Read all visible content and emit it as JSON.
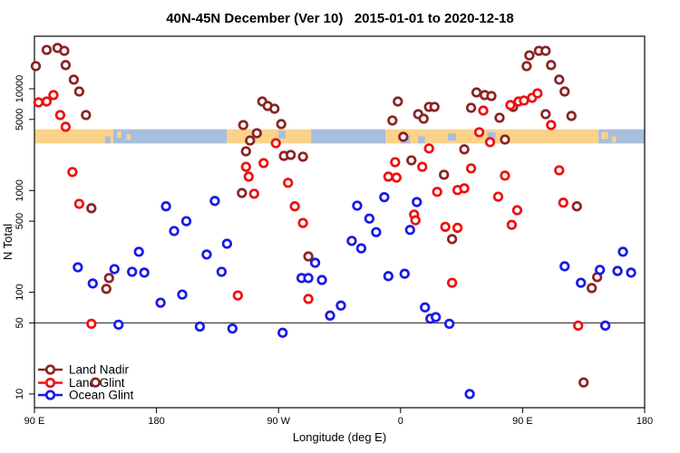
{
  "chart_data": {
    "type": "scatter",
    "title": "40N-45N December (Ver 10)   2015-01-01 to 2020-12-18",
    "xlabel": "Longitude (deg E)",
    "ylabel": "N Total",
    "x_axis": {
      "range": [
        90,
        540
      ],
      "ticks": [
        90,
        180,
        270,
        360,
        450,
        540
      ],
      "tick_labels": [
        "90 E",
        "180",
        "90 W",
        "0",
        "90 E",
        "180"
      ]
    },
    "y_axis": {
      "scale": "log",
      "range": [
        7,
        33000
      ],
      "ticks": [
        10,
        50,
        100,
        500,
        1000,
        5000,
        10000
      ],
      "tick_labels": [
        "10",
        "50",
        "100",
        "500",
        "1000",
        "5000",
        "10000"
      ]
    },
    "reference_line_y": 50,
    "legend_position": "bottom-left",
    "grid": false,
    "map_strip": {
      "description": "world land/ocean strip for 40N-45N band",
      "value_range": [
        2900,
        4000
      ],
      "land_color": "#fbd28a",
      "ocean_color": "#a7bedc",
      "segments": [
        {
          "c": "land",
          "a": 90,
          "b": 148
        },
        {
          "c": "ocean",
          "a": 148,
          "b": 232
        },
        {
          "c": "land",
          "a": 232,
          "b": 294
        },
        {
          "c": "ocean",
          "a": 294,
          "b": 349
        },
        {
          "c": "land",
          "a": 349,
          "b": 506
        },
        {
          "c": "ocean",
          "a": 506,
          "b": 540
        }
      ],
      "patches": [
        {
          "c": "ocean",
          "a": 142,
          "b": 146,
          "t": 0.5,
          "h": 0.5
        },
        {
          "c": "land",
          "a": 151,
          "b": 154,
          "t": 0.15,
          "h": 0.45
        },
        {
          "c": "land",
          "a": 158,
          "b": 161,
          "t": 0.35,
          "h": 0.4
        },
        {
          "c": "ocean",
          "a": 270,
          "b": 275,
          "t": 0.1,
          "h": 0.55
        },
        {
          "c": "ocean",
          "a": 360,
          "b": 367,
          "t": 0.45,
          "h": 0.55
        },
        {
          "c": "ocean",
          "a": 373,
          "b": 378,
          "t": 0.5,
          "h": 0.5
        },
        {
          "c": "ocean",
          "a": 395,
          "b": 401,
          "t": 0.3,
          "h": 0.5
        },
        {
          "c": "ocean",
          "a": 424,
          "b": 430,
          "t": 0.2,
          "h": 0.6
        },
        {
          "c": "land",
          "a": 508,
          "b": 513,
          "t": 0.2,
          "h": 0.5
        },
        {
          "c": "land",
          "a": 516,
          "b": 519,
          "t": 0.5,
          "h": 0.4
        }
      ]
    },
    "series": [
      {
        "name": "Land Nadir",
        "color": "#8b2424",
        "points": [
          [
            99,
            24100
          ],
          [
            107,
            25200
          ],
          [
            112,
            23600
          ],
          [
            91,
            16700
          ],
          [
            113,
            17100
          ],
          [
            119,
            12300
          ],
          [
            123,
            9400
          ],
          [
            128,
            5520
          ],
          [
            132,
            670
          ],
          [
            145,
            138
          ],
          [
            143,
            108
          ],
          [
            135,
            13
          ],
          [
            244,
            4400
          ],
          [
            258,
            7500
          ],
          [
            262,
            6780
          ],
          [
            267,
            6370
          ],
          [
            272,
            4500
          ],
          [
            249,
            3100
          ],
          [
            254,
            3660
          ],
          [
            246,
            2430
          ],
          [
            243,
            945
          ],
          [
            274,
            2190
          ],
          [
            279,
            2240
          ],
          [
            288,
            2150
          ],
          [
            292,
            225
          ],
          [
            358,
            7500
          ],
          [
            381,
            6640
          ],
          [
            385,
            6640
          ],
          [
            373,
            5630
          ],
          [
            377,
            5080
          ],
          [
            354,
            4880
          ],
          [
            362,
            3370
          ],
          [
            368,
            1980
          ],
          [
            412,
            6500
          ],
          [
            416,
            9200
          ],
          [
            422,
            8670
          ],
          [
            427,
            8490
          ],
          [
            433,
            5190
          ],
          [
            437,
            3170
          ],
          [
            443,
            6640
          ],
          [
            407,
            2540
          ],
          [
            392,
            1430
          ],
          [
            398,
            333
          ],
          [
            455,
            21300
          ],
          [
            462,
            23600
          ],
          [
            467,
            23600
          ],
          [
            453,
            16700
          ],
          [
            471,
            17100
          ],
          [
            477,
            12300
          ],
          [
            481,
            9400
          ],
          [
            467,
            5630
          ],
          [
            486,
            5410
          ],
          [
            490,
            700
          ],
          [
            505,
            141
          ],
          [
            501,
            110
          ],
          [
            495,
            13
          ]
        ]
      },
      {
        "name": "Land Glint",
        "color": "#ee1111",
        "points": [
          [
            93,
            7350
          ],
          [
            99,
            7500
          ],
          [
            104,
            8670
          ],
          [
            109,
            5520
          ],
          [
            113,
            4230
          ],
          [
            118,
            1520
          ],
          [
            123,
            740
          ],
          [
            132,
            49
          ],
          [
            246,
            1710
          ],
          [
            259,
            1860
          ],
          [
            248,
            1370
          ],
          [
            252,
            930
          ],
          [
            268,
            2920
          ],
          [
            277,
            1190
          ],
          [
            282,
            700
          ],
          [
            288,
            480
          ],
          [
            240,
            93
          ],
          [
            292,
            86
          ],
          [
            441,
            6920
          ],
          [
            447,
            7500
          ],
          [
            451,
            7660
          ],
          [
            457,
            8150
          ],
          [
            461,
            9020
          ],
          [
            421,
            6110
          ],
          [
            471,
            4400
          ],
          [
            418,
            3740
          ],
          [
            426,
            2990
          ],
          [
            381,
            2590
          ],
          [
            356,
            1900
          ],
          [
            376,
            1710
          ],
          [
            351,
            1370
          ],
          [
            357,
            1340
          ],
          [
            412,
            1650
          ],
          [
            437,
            1400
          ],
          [
            387,
            970
          ],
          [
            402,
            1010
          ],
          [
            407,
            1050
          ],
          [
            432,
            870
          ],
          [
            477,
            1580
          ],
          [
            480,
            760
          ],
          [
            446,
            640
          ],
          [
            370,
            580
          ],
          [
            371,
            510
          ],
          [
            393,
            440
          ],
          [
            402,
            430
          ],
          [
            442,
            460
          ],
          [
            398,
            124
          ],
          [
            491,
            47
          ]
        ]
      },
      {
        "name": "Ocean Glint",
        "color": "#1a1ae6",
        "points": [
          [
            187,
            700
          ],
          [
            202,
            500
          ],
          [
            223,
            790
          ],
          [
            122,
            176
          ],
          [
            133,
            122
          ],
          [
            149,
            169
          ],
          [
            162,
            159
          ],
          [
            167,
            250
          ],
          [
            171,
            156
          ],
          [
            193,
            400
          ],
          [
            183,
            79
          ],
          [
            199,
            95
          ],
          [
            217,
            235
          ],
          [
            228,
            159
          ],
          [
            232,
            300
          ],
          [
            152,
            48
          ],
          [
            212,
            46
          ],
          [
            236,
            44
          ],
          [
            273,
            40
          ],
          [
            287,
            138
          ],
          [
            292,
            138
          ],
          [
            302,
            132
          ],
          [
            297,
            195
          ],
          [
            308,
            59
          ],
          [
            316,
            74
          ],
          [
            328,
            710
          ],
          [
            348,
            860
          ],
          [
            372,
            770
          ],
          [
            337,
            530
          ],
          [
            324,
            320
          ],
          [
            331,
            270
          ],
          [
            342,
            390
          ],
          [
            367,
            410
          ],
          [
            351,
            144
          ],
          [
            363,
            152
          ],
          [
            378,
            71
          ],
          [
            382,
            55
          ],
          [
            386,
            57
          ],
          [
            396,
            49
          ],
          [
            411,
            10
          ],
          [
            481,
            180
          ],
          [
            493,
            124
          ],
          [
            507,
            166
          ],
          [
            520,
            162
          ],
          [
            530,
            156
          ],
          [
            524,
            250
          ],
          [
            511,
            47
          ]
        ]
      }
    ]
  }
}
